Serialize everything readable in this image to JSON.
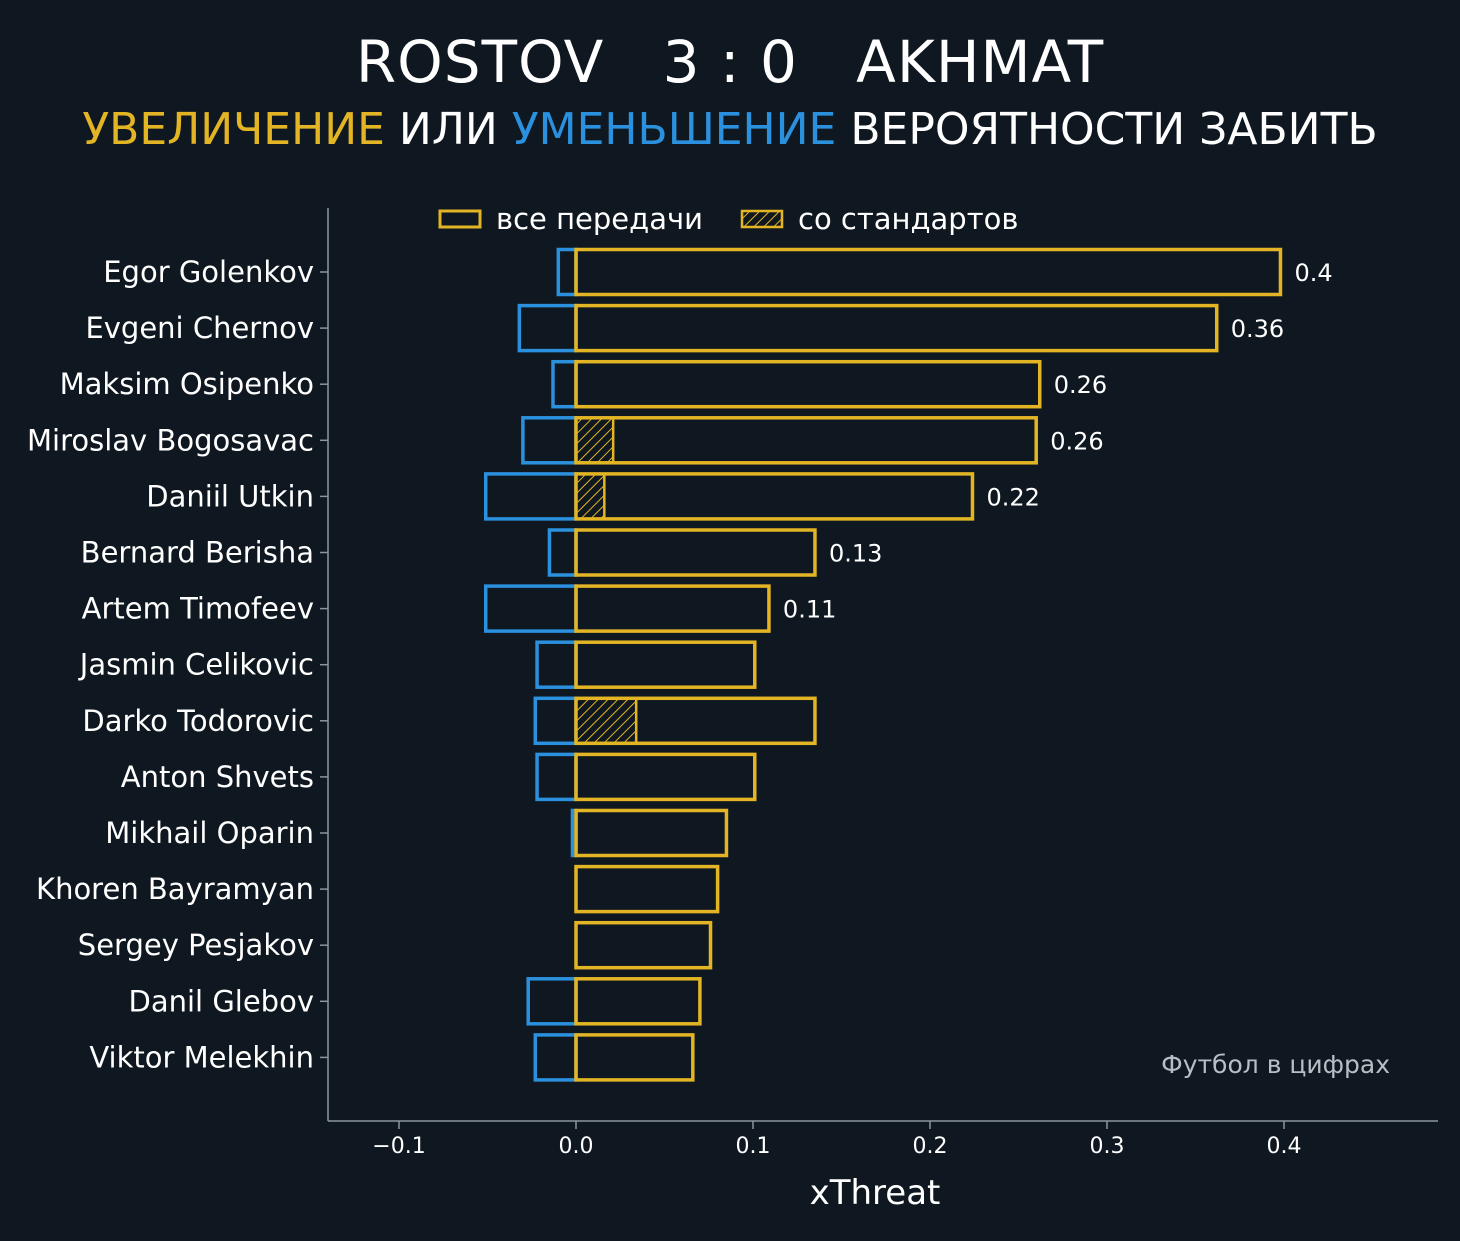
{
  "header": {
    "title": "ROSTOV   3 : 0   AKHMAT",
    "subtitle_increase": "УВЕЛИЧЕНИЕ",
    "subtitle_or": "ИЛИ",
    "subtitle_decrease": "УМЕНЬШЕНИЕ",
    "subtitle_rest": "ВЕРОЯТНОСТИ ЗАБИТЬ"
  },
  "watermark": "Футбол в цифрах",
  "colors": {
    "background": "#0f1820",
    "increase": "#e3b524",
    "decrease": "#2b90de",
    "axis": "#8a959e",
    "text": "#ffffff"
  },
  "chart_data": {
    "type": "bar",
    "orientation": "horizontal",
    "xlabel": "xThreat",
    "xlim": [
      -0.14,
      0.49
    ],
    "xticks": [
      -0.1,
      0.0,
      0.1,
      0.2,
      0.3,
      0.4
    ],
    "xtick_labels": [
      "−0.1",
      "0.0",
      "0.1",
      "0.2",
      "0.3",
      "0.4"
    ],
    "grid": false,
    "legend_position": "top",
    "legend": [
      {
        "label": "все передачи",
        "style": "outline"
      },
      {
        "label": "со стандартов",
        "style": "hatched"
      }
    ],
    "categories": [
      "Egor Golenkov",
      "Evgeni Chernov",
      "Maksim Osipenko",
      "Miroslav Bogosavac",
      "Daniil Utkin",
      "Bernard Berisha",
      "Artem Timofeev",
      "Jasmin Celikovic",
      "Darko Todorovic",
      "Anton Shvets",
      "Mikhail Oparin",
      "Khoren Bayramyan",
      "Sergey Pesjakov",
      "Danil Glebov",
      "Viktor Melekhin"
    ],
    "series": [
      {
        "name": "все передачи",
        "values": [
          0.398,
          0.362,
          0.262,
          0.26,
          0.224,
          0.135,
          0.109,
          0.101,
          0.135,
          0.101,
          0.085,
          0.08,
          0.076,
          0.07,
          0.066
        ]
      },
      {
        "name": "со стандартов",
        "values": [
          0,
          0,
          0,
          0.021,
          0.016,
          0,
          0,
          0,
          0.034,
          0,
          0,
          0,
          0,
          0,
          0
        ]
      },
      {
        "name": "",
        "values": [
          -0.01,
          -0.032,
          -0.013,
          -0.03,
          -0.051,
          -0.015,
          -0.051,
          -0.022,
          -0.023,
          -0.022,
          -0.002,
          0,
          0,
          -0.027,
          -0.023
        ]
      }
    ],
    "data_labels": [
      "0.4",
      "0.36",
      "0.26",
      "0.26",
      "0.22",
      "0.13",
      "0.11",
      "",
      "",
      "",
      "",
      "",
      "",
      "",
      ""
    ]
  }
}
